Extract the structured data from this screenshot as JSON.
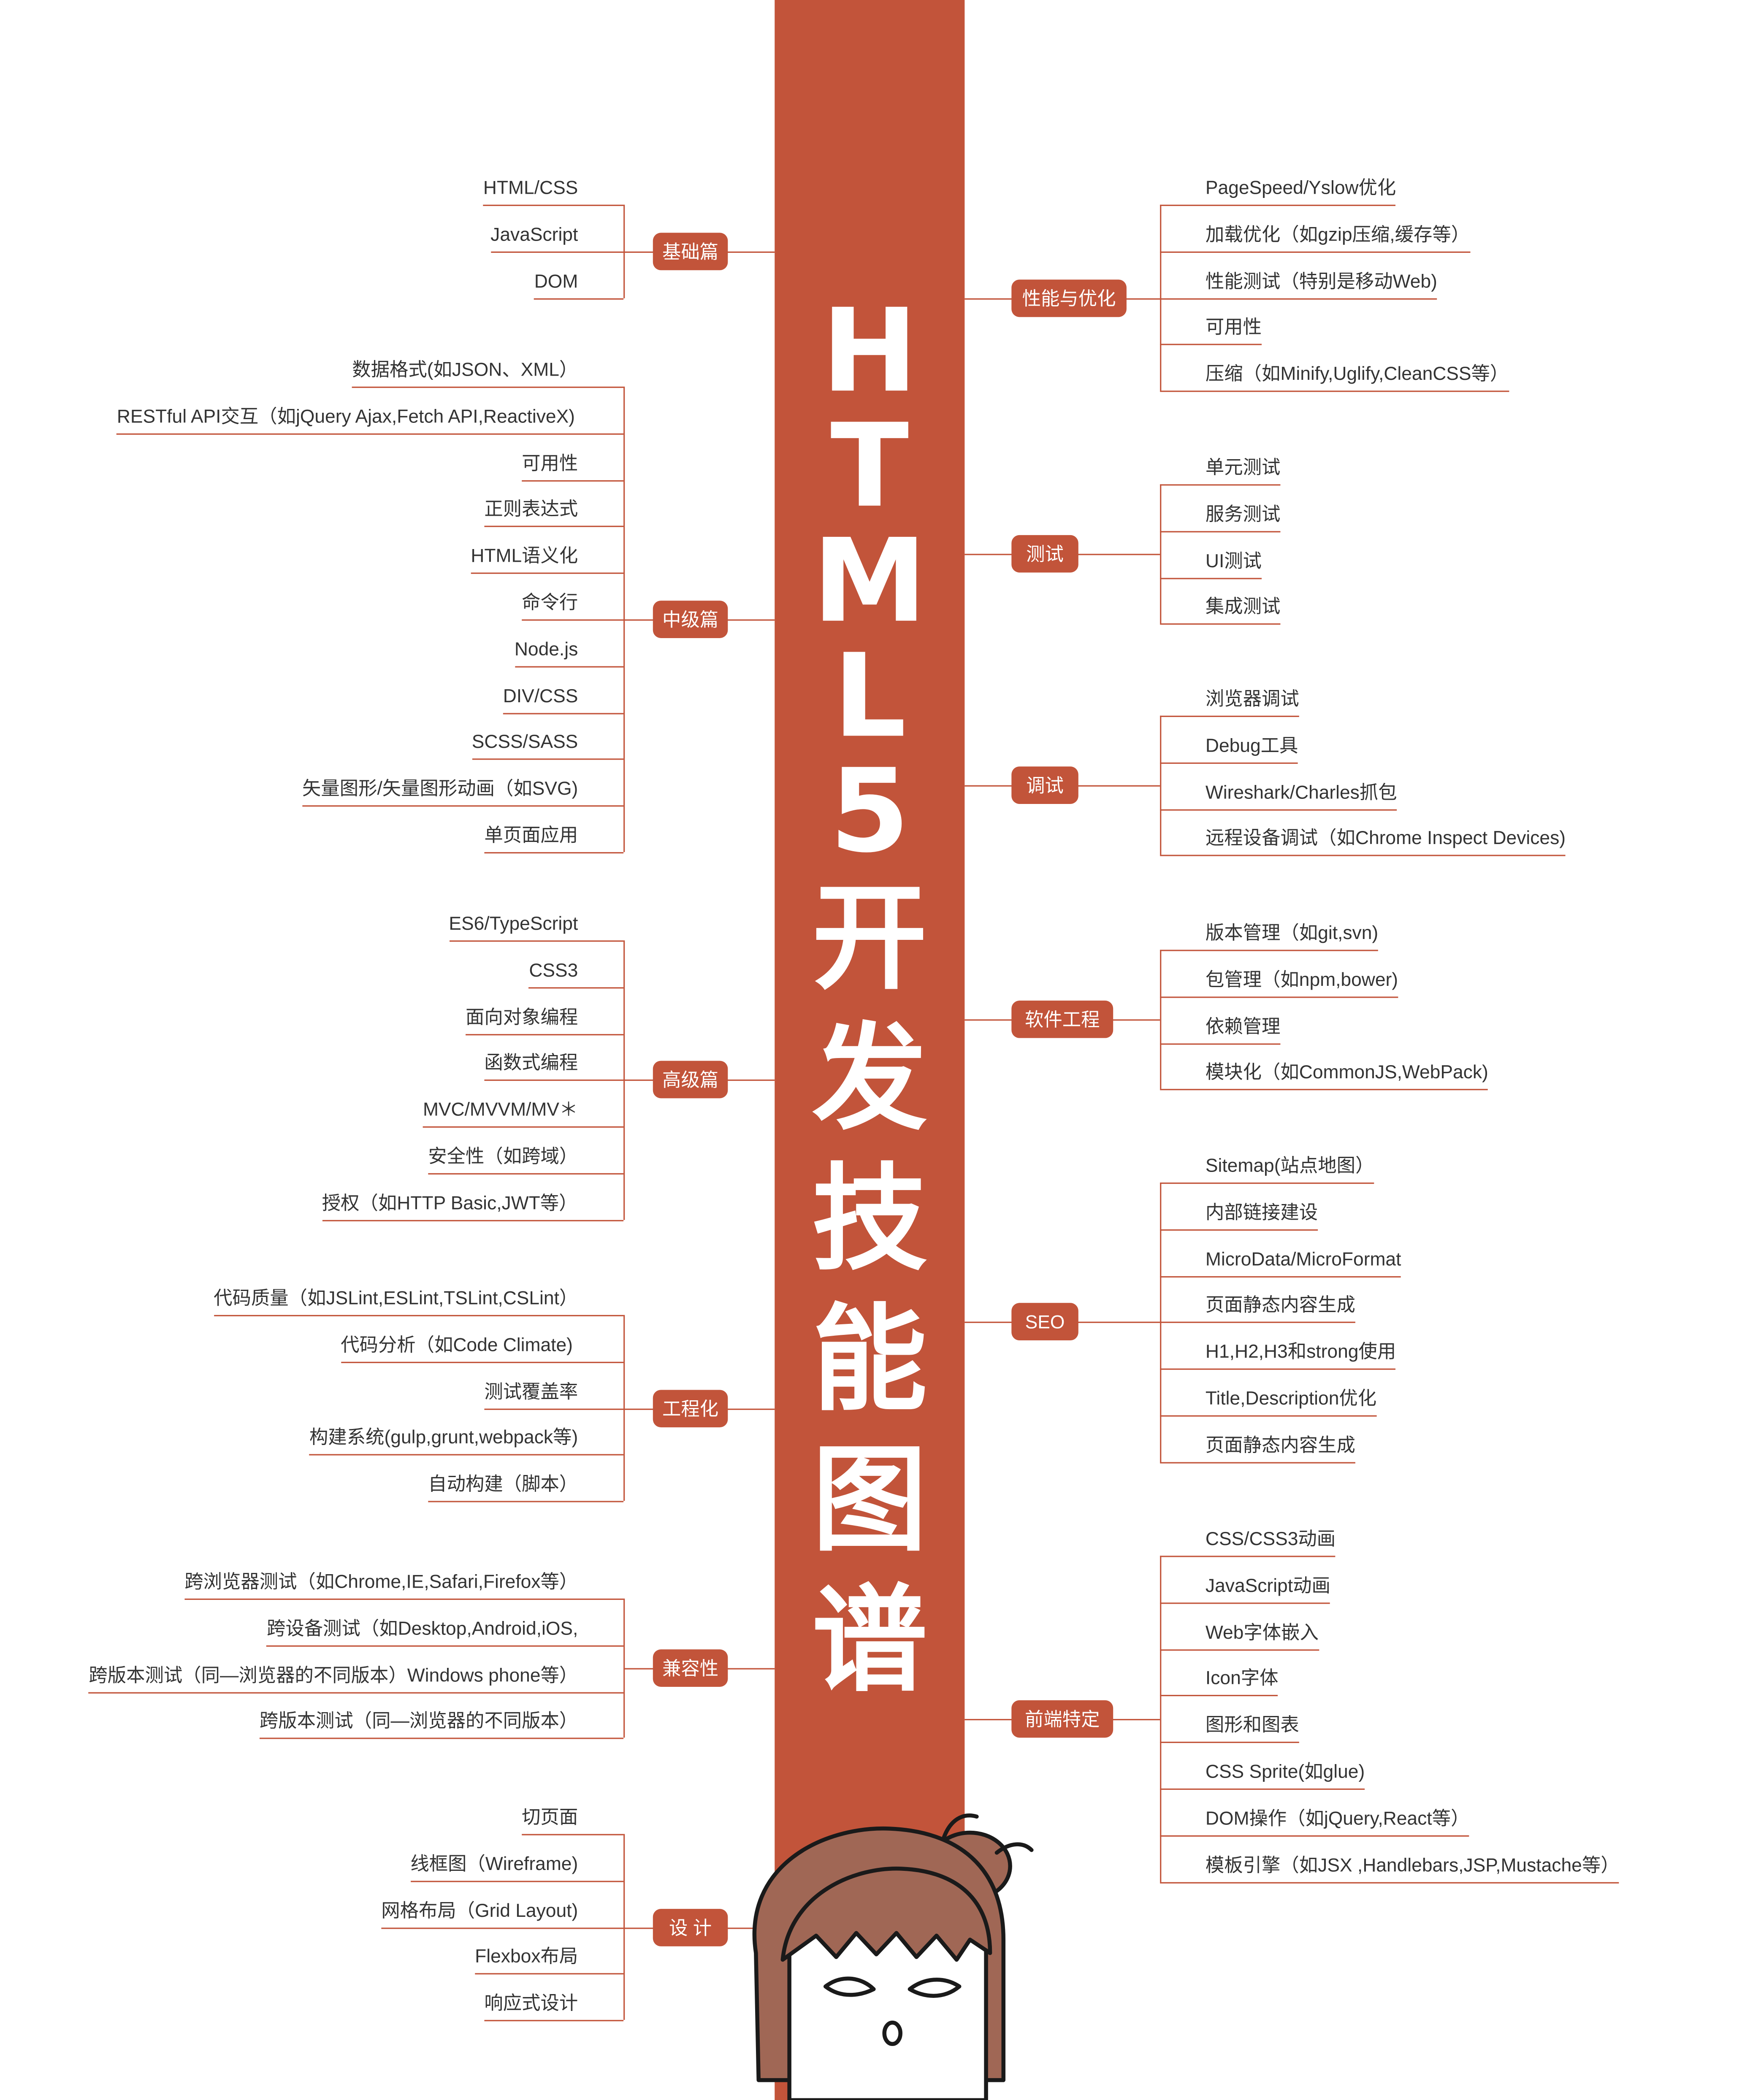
{
  "title_chars": [
    "H",
    "T",
    "M",
    "L",
    "5",
    "开",
    "发",
    "技",
    "能",
    "图",
    "谱"
  ],
  "left": [
    {
      "label": "基础篇",
      "items": [
        "HTML/CSS",
        "JavaScript",
        "DOM"
      ]
    },
    {
      "label": "中级篇",
      "items": [
        "数据格式(如JSON、XML）",
        "RESTful API交互（如jQuery Ajax,Fetch API,ReactiveX)",
        "可用性",
        "正则表达式",
        "HTML语义化",
        "命令行",
        "Node.js",
        "DIV/CSS",
        "SCSS/SASS",
        "矢量图形/矢量图形动画（如SVG)",
        "单页面应用"
      ]
    },
    {
      "label": "高级篇",
      "items": [
        "ES6/TypeScript",
        "CSS3",
        "面向对象编程",
        "函数式编程",
        "MVC/MVVM/MV＊",
        "安全性（如跨域）",
        "授权（如HTTP Basic,JWT等）"
      ]
    },
    {
      "label": "工程化",
      "items": [
        "代码质量（如JSLint,ESLint,TSLint,CSLint）",
        "代码分析（如Code  Climate)",
        "测试覆盖率",
        "构建系统(gulp,grunt,webpack等)",
        "自动构建（脚本）"
      ]
    },
    {
      "label": "兼容性",
      "items": [
        "跨浏览器测试（如Chrome,IE,Safari,Firefox等）",
        "跨设备测试（如Desktop,Android,iOS,",
        "跨版本测试（同—浏览器的不同版本）Windows phone等）",
        "跨版本测试（同—浏览器的不同版本）"
      ]
    },
    {
      "label": "设 计",
      "items": [
        "切页面",
        "线框图（Wireframe)",
        "网格布局（Grid Layout)",
        "Flexbox布局",
        "响应式设计"
      ]
    }
  ],
  "right": [
    {
      "label": "性能与优化",
      "items": [
        "PageSpeed/Yslow优化",
        "加载优化（如gzip压缩,缓存等）",
        "性能测试（特别是移动Web)",
        "可用性",
        "压缩（如Minify,Uglify,CleanCSS等）"
      ]
    },
    {
      "label": "测试",
      "items": [
        "单元测试",
        "服务测试",
        "UI测试",
        "集成测试"
      ]
    },
    {
      "label": "调试",
      "items": [
        "浏览器调试",
        "Debug工具",
        "Wireshark/Charles抓包",
        "远程设备调试（如Chrome Inspect Devices)"
      ]
    },
    {
      "label": "软件工程",
      "items": [
        "版本管理（如git,svn)",
        "包管理（如npm,bower)",
        "依赖管理",
        "模块化（如CommonJS,WebPack)"
      ]
    },
    {
      "label": "SEO",
      "items": [
        "Sitemap(站点地图）",
        "内部链接建设",
        "MicroData/MicroFormat",
        "页面静态内容生成",
        "H1,H2,H3和strong使用",
        "Title,Description优化",
        "页面静态内容生成"
      ]
    },
    {
      "label": "前端特定",
      "items": [
        "CSS/CSS3动画",
        "JavaScript动画",
        "Web字体嵌入",
        "Icon字体",
        "图形和图表",
        "CSS Sprite(如glue)",
        "DOM操作（如jQuery,React等）",
        "模板引擎（如JSX ,Handlebars,JSP,Mustache等）"
      ]
    }
  ],
  "colors": {
    "accent": "#c2543a",
    "text": "#333333",
    "hair": "#a06755"
  }
}
